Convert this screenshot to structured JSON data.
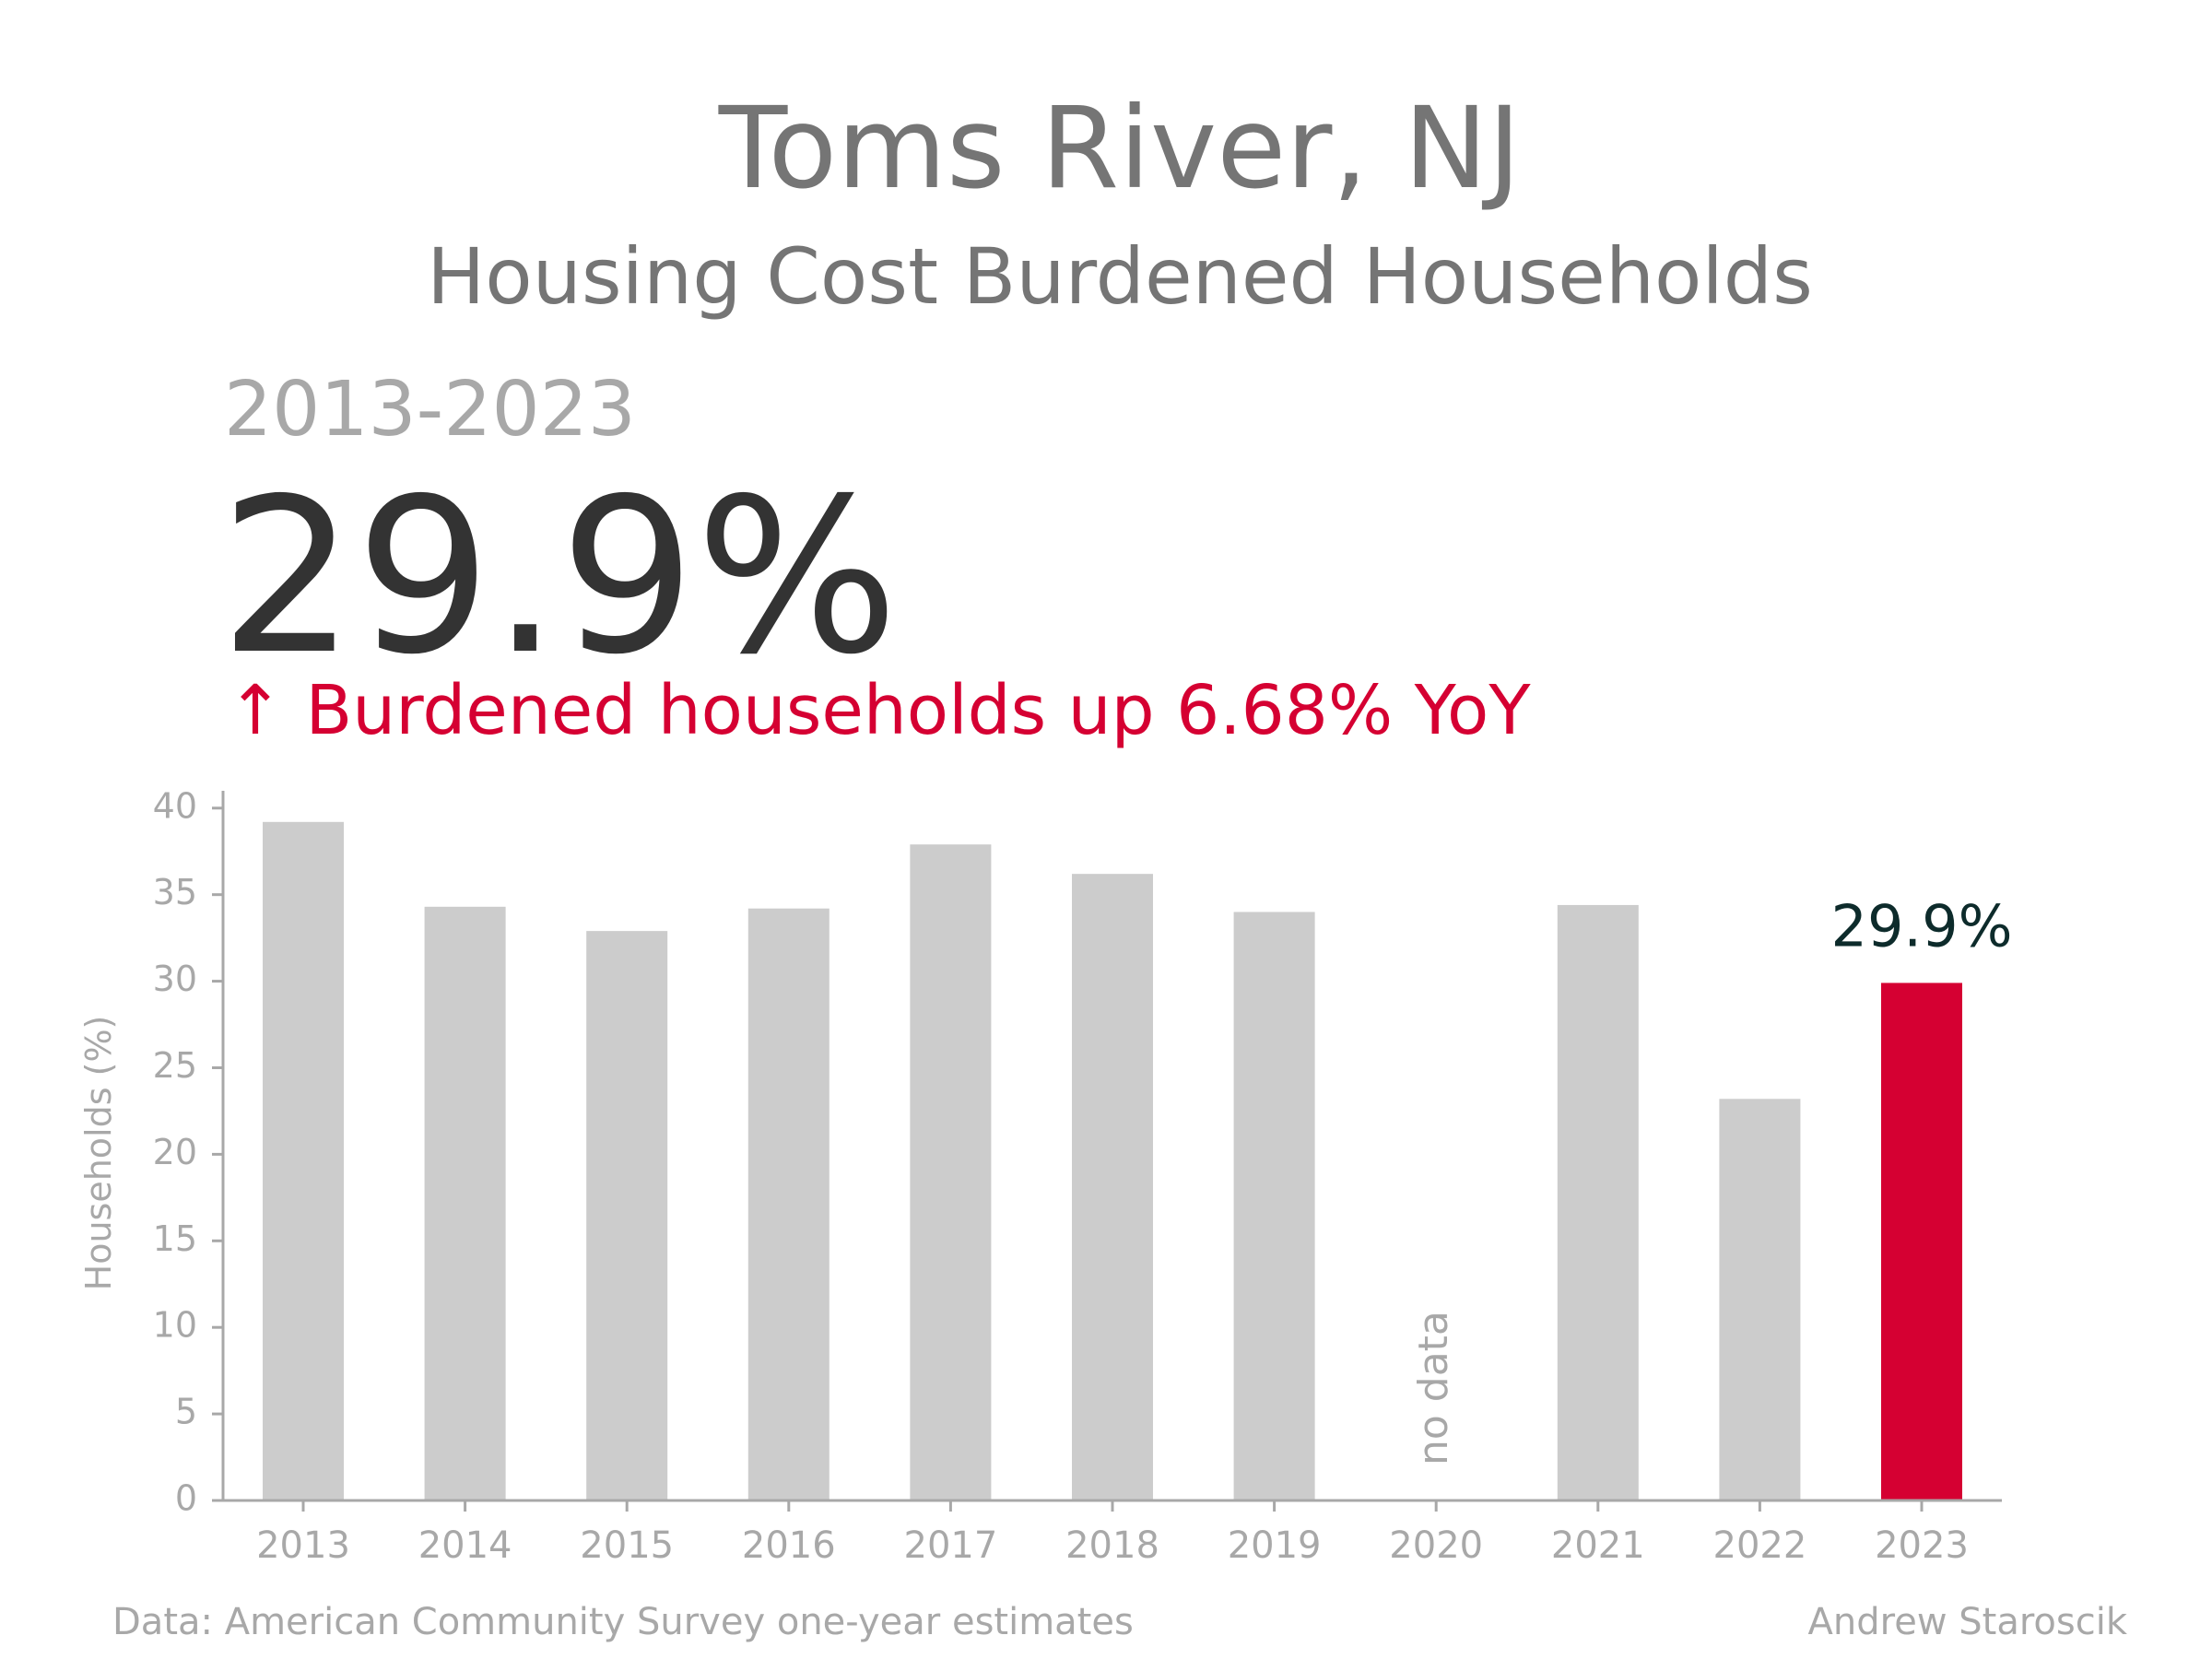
{
  "header": {
    "title": "Toms River, NJ",
    "subtitle": "Housing Cost Burdened Households",
    "period": "2013-2023",
    "headline_value": "29.9%",
    "change_text": "↑ Burdened households up 6.68% YoY"
  },
  "footer": {
    "source": "Data: American Community Survey one-year estimates",
    "author": "Andrew Staroscik"
  },
  "colors": {
    "bar": "#cccccc",
    "highlight": "#d50032",
    "axis": "#a8a8a8",
    "value_label": "#0d2b2b"
  },
  "chart_data": {
    "type": "bar",
    "categories": [
      "2013",
      "2014",
      "2015",
      "2016",
      "2017",
      "2018",
      "2019",
      "2020",
      "2021",
      "2022",
      "2023"
    ],
    "values": [
      39.2,
      34.3,
      32.9,
      34.2,
      37.9,
      36.2,
      34.0,
      null,
      34.4,
      23.2,
      29.9
    ],
    "highlight_index": 10,
    "highlight_label": "29.9%",
    "missing_label": "no data",
    "ylabel": "Households (%)",
    "xlabel": "",
    "ylim": [
      0,
      41
    ],
    "yticks": [
      0,
      5,
      10,
      15,
      20,
      25,
      30,
      35,
      40
    ],
    "grid": false
  }
}
